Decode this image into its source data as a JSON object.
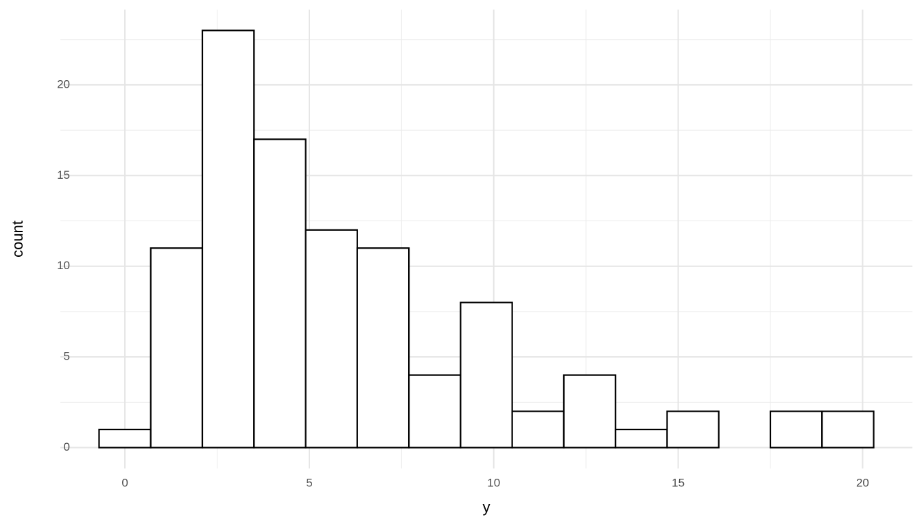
{
  "chart_data": {
    "type": "histogram",
    "xlabel": "y",
    "ylabel": "count",
    "bins": [
      -0.7,
      0.7,
      2.1,
      3.5,
      4.9,
      6.3,
      7.7,
      9.1,
      10.5,
      11.9,
      13.3,
      14.7,
      16.1,
      17.5,
      18.9,
      20.3
    ],
    "values": [
      1,
      11,
      23,
      17,
      12,
      11,
      4,
      8,
      2,
      4,
      1,
      2,
      0,
      2,
      2
    ],
    "color": "#ffffff",
    "edgecolor": "#000000",
    "xlim": [
      -1.75,
      21.35
    ],
    "xticks": [
      0,
      5,
      10,
      15,
      20
    ],
    "ylim": [
      -1.15,
      24.15
    ],
    "yticks": [
      0,
      5,
      10,
      15,
      20
    ],
    "grid": true,
    "minor_grid": true
  }
}
